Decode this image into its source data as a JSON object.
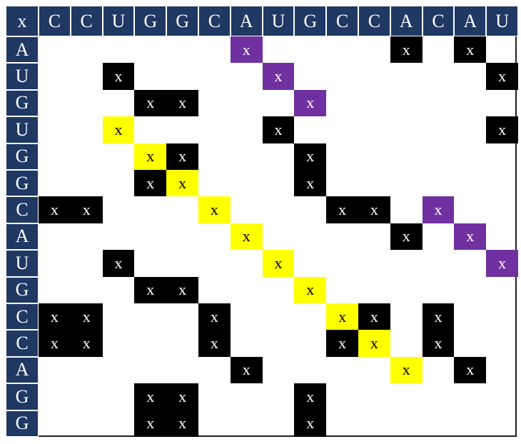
{
  "matrix": {
    "corner_label": "x",
    "column_headers": [
      "C",
      "C",
      "U",
      "G",
      "G",
      "C",
      "A",
      "U",
      "G",
      "C",
      "C",
      "A",
      "C",
      "A",
      "U"
    ],
    "row_headers": [
      "A",
      "U",
      "G",
      "U",
      "G",
      "G",
      "C",
      "A",
      "U",
      "G",
      "C",
      "C",
      "A",
      "G",
      "G"
    ],
    "mark_symbol": "x",
    "colors": {
      "header_bg": "#1f3864",
      "header_text": "#ffffff",
      "black": "#000000",
      "yellow": "#ffff00",
      "purple": "#7030a0",
      "background": "#ffffff"
    },
    "marks": [
      {
        "row": 0,
        "col": 6,
        "color": "purple"
      },
      {
        "row": 0,
        "col": 11,
        "color": "black"
      },
      {
        "row": 0,
        "col": 13,
        "color": "black"
      },
      {
        "row": 1,
        "col": 2,
        "color": "black"
      },
      {
        "row": 1,
        "col": 7,
        "color": "purple"
      },
      {
        "row": 1,
        "col": 14,
        "color": "black"
      },
      {
        "row": 2,
        "col": 3,
        "color": "black"
      },
      {
        "row": 2,
        "col": 4,
        "color": "black"
      },
      {
        "row": 2,
        "col": 8,
        "color": "purple"
      },
      {
        "row": 3,
        "col": 2,
        "color": "yellow"
      },
      {
        "row": 3,
        "col": 7,
        "color": "black"
      },
      {
        "row": 3,
        "col": 14,
        "color": "black"
      },
      {
        "row": 4,
        "col": 3,
        "color": "yellow"
      },
      {
        "row": 4,
        "col": 4,
        "color": "black"
      },
      {
        "row": 4,
        "col": 8,
        "color": "black"
      },
      {
        "row": 5,
        "col": 3,
        "color": "black"
      },
      {
        "row": 5,
        "col": 4,
        "color": "yellow"
      },
      {
        "row": 5,
        "col": 8,
        "color": "black"
      },
      {
        "row": 6,
        "col": 0,
        "color": "black"
      },
      {
        "row": 6,
        "col": 1,
        "color": "black"
      },
      {
        "row": 6,
        "col": 5,
        "color": "yellow"
      },
      {
        "row": 6,
        "col": 9,
        "color": "black"
      },
      {
        "row": 6,
        "col": 10,
        "color": "black"
      },
      {
        "row": 6,
        "col": 12,
        "color": "purple"
      },
      {
        "row": 7,
        "col": 6,
        "color": "yellow"
      },
      {
        "row": 7,
        "col": 11,
        "color": "black"
      },
      {
        "row": 7,
        "col": 13,
        "color": "purple"
      },
      {
        "row": 8,
        "col": 2,
        "color": "black"
      },
      {
        "row": 8,
        "col": 7,
        "color": "yellow"
      },
      {
        "row": 8,
        "col": 14,
        "color": "purple"
      },
      {
        "row": 9,
        "col": 3,
        "color": "black"
      },
      {
        "row": 9,
        "col": 4,
        "color": "black"
      },
      {
        "row": 9,
        "col": 8,
        "color": "yellow"
      },
      {
        "row": 10,
        "col": 0,
        "color": "black"
      },
      {
        "row": 10,
        "col": 1,
        "color": "black"
      },
      {
        "row": 10,
        "col": 5,
        "color": "black"
      },
      {
        "row": 10,
        "col": 9,
        "color": "yellow"
      },
      {
        "row": 10,
        "col": 10,
        "color": "black"
      },
      {
        "row": 10,
        "col": 12,
        "color": "black"
      },
      {
        "row": 11,
        "col": 0,
        "color": "black"
      },
      {
        "row": 11,
        "col": 1,
        "color": "black"
      },
      {
        "row": 11,
        "col": 5,
        "color": "black"
      },
      {
        "row": 11,
        "col": 9,
        "color": "black"
      },
      {
        "row": 11,
        "col": 10,
        "color": "yellow"
      },
      {
        "row": 11,
        "col": 12,
        "color": "black"
      },
      {
        "row": 12,
        "col": 6,
        "color": "black"
      },
      {
        "row": 12,
        "col": 11,
        "color": "yellow"
      },
      {
        "row": 12,
        "col": 13,
        "color": "black"
      },
      {
        "row": 13,
        "col": 3,
        "color": "black"
      },
      {
        "row": 13,
        "col": 4,
        "color": "black"
      },
      {
        "row": 13,
        "col": 8,
        "color": "black"
      },
      {
        "row": 14,
        "col": 3,
        "color": "black"
      },
      {
        "row": 14,
        "col": 4,
        "color": "black"
      },
      {
        "row": 14,
        "col": 8,
        "color": "black"
      }
    ]
  }
}
